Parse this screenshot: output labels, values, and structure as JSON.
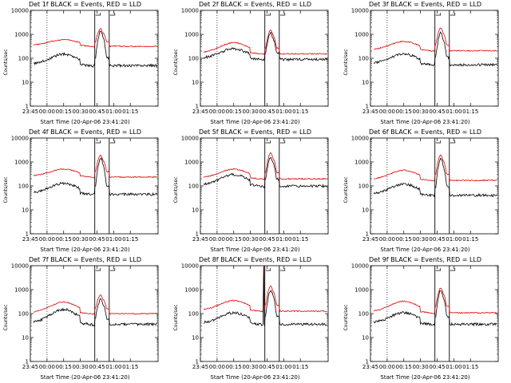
{
  "colors": {
    "events": "#000000",
    "lld": "#e00000",
    "background": "#ffffff"
  },
  "x_tick_labels": [
    "23:45",
    "00:00",
    "00:15",
    "00:30",
    "00:45",
    "01:00",
    "01:15"
  ],
  "y_tick_labels": [
    "1",
    "10",
    "100",
    "1000",
    "10000"
  ],
  "ylabel": "Counts/sec",
  "xlabel": "Start Time (20-Apr-06 23:41:20)",
  "chart_data": [
    {
      "type": "line",
      "title": "Det 1f BLACK = Events, RED = LLD",
      "xlabel": "Start Time (20-Apr-06 23:41:20)",
      "ylabel": "Counts/sec",
      "ylim": [
        1,
        10000
      ],
      "y_scale": "log",
      "x_ticks": [
        "23:45",
        "00:00",
        "00:15",
        "00:30",
        "00:45",
        "01:00",
        "01:15"
      ],
      "bump_peak": [
        150,
        600
      ],
      "base": [
        55,
        350
      ],
      "storm": [
        1500,
        1800
      ],
      "storm_start": "00:43",
      "storm_end": "00:56",
      "spike": false
    },
    {
      "type": "line",
      "title": "Det 2f BLACK = Events, RED = LLD",
      "xlabel": "Start Time (20-Apr-06 23:41:20)",
      "ylabel": "Counts/sec",
      "ylim": [
        1,
        10000
      ],
      "y_scale": "log",
      "x_ticks": [
        "23:45",
        "00:00",
        "00:15",
        "00:30",
        "00:45",
        "01:00",
        "01:15"
      ],
      "bump_peak": [
        250,
        450
      ],
      "base": [
        100,
        170
      ],
      "storm": [
        1200,
        1600
      ],
      "storm_start": "00:43",
      "storm_end": "00:56",
      "spike": false
    },
    {
      "type": "line",
      "title": "Det 3f BLACK = Events, RED = LLD",
      "xlabel": "Start Time (20-Apr-06 23:41:20)",
      "ylabel": "Counts/sec",
      "ylim": [
        1,
        10000
      ],
      "y_scale": "log",
      "x_ticks": [
        "23:45",
        "00:00",
        "00:15",
        "00:30",
        "00:45",
        "01:00",
        "01:15"
      ],
      "bump_peak": [
        150,
        500
      ],
      "base": [
        60,
        230
      ],
      "storm": [
        1200,
        1900
      ],
      "storm_start": "00:43",
      "storm_end": "00:56",
      "spike": false
    },
    {
      "type": "line",
      "title": "Det 4f BLACK = Events, RED = LLD",
      "xlabel": "Start Time (20-Apr-06 23:41:20)",
      "ylabel": "Counts/sec",
      "ylim": [
        1,
        10000
      ],
      "y_scale": "log",
      "x_ticks": [
        "23:45",
        "00:00",
        "00:15",
        "00:30",
        "00:45",
        "01:00",
        "01:15"
      ],
      "bump_peak": [
        130,
        500
      ],
      "base": [
        50,
        260
      ],
      "storm": [
        1600,
        2000
      ],
      "storm_start": "00:43",
      "storm_end": "00:56",
      "spike": false
    },
    {
      "type": "line",
      "title": "Det 5f BLACK = Events, RED = LLD",
      "xlabel": "Start Time (20-Apr-06 23:41:20)",
      "ylabel": "Counts/sec",
      "ylim": [
        1,
        10000
      ],
      "y_scale": "log",
      "x_ticks": [
        "23:45",
        "00:00",
        "00:15",
        "00:30",
        "00:45",
        "01:00",
        "01:15"
      ],
      "bump_peak": [
        300,
        500
      ],
      "base": [
        110,
        220
      ],
      "storm": [
        1600,
        2500
      ],
      "storm_start": "00:43",
      "storm_end": "00:56",
      "spike": false
    },
    {
      "type": "line",
      "title": "Det 6f BLACK = Events, RED = LLD",
      "xlabel": "Start Time (20-Apr-06 23:41:20)",
      "ylabel": "Counts/sec",
      "ylim": [
        1,
        10000
      ],
      "y_scale": "log",
      "x_ticks": [
        "23:45",
        "00:00",
        "00:15",
        "00:30",
        "00:45",
        "01:00",
        "01:15"
      ],
      "bump_peak": [
        120,
        450
      ],
      "base": [
        45,
        190
      ],
      "storm": [
        1500,
        2000
      ],
      "storm_start": "00:43",
      "storm_end": "00:56",
      "spike": false
    },
    {
      "type": "line",
      "title": "Det 7f BLACK = Events, RED = LLD",
      "xlabel": "Start Time (20-Apr-06 23:41:20)",
      "ylabel": "Counts/sec",
      "ylim": [
        1,
        10000
      ],
      "y_scale": "log",
      "x_ticks": [
        "23:45",
        "00:00",
        "00:15",
        "00:30",
        "00:45",
        "01:00",
        "01:15"
      ],
      "bump_peak": [
        150,
        300
      ],
      "base": [
        40,
        110
      ],
      "storm": [
        400,
        650
      ],
      "storm_start": "00:43",
      "storm_end": "00:56",
      "spike": false
    },
    {
      "type": "line",
      "title": "Det 8f BLACK = Events, RED = LLD",
      "xlabel": "Start Time (20-Apr-06 23:41:20)",
      "ylabel": "Counts/sec",
      "ylim": [
        1,
        10000
      ],
      "y_scale": "log",
      "x_ticks": [
        "23:45",
        "00:00",
        "00:15",
        "00:30",
        "00:45",
        "01:00",
        "01:15"
      ],
      "bump_peak": [
        110,
        350
      ],
      "base": [
        40,
        140
      ],
      "storm": [
        1000,
        1500
      ],
      "storm_start": "00:43",
      "storm_end": "00:56",
      "spike": true
    },
    {
      "type": "line",
      "title": "Det 9f BLACK = Events, RED = LLD",
      "xlabel": "Start Time (20-Apr-06 23:41:20)",
      "ylabel": "Counts/sec",
      "ylim": [
        1,
        10000
      ],
      "y_scale": "log",
      "x_ticks": [
        "23:45",
        "00:00",
        "00:15",
        "00:30",
        "00:45",
        "01:00",
        "01:15"
      ],
      "bump_peak": [
        110,
        330
      ],
      "base": [
        40,
        120
      ],
      "storm": [
        1000,
        1250
      ],
      "storm_start": "00:43",
      "storm_end": "00:56",
      "spike": false
    }
  ]
}
